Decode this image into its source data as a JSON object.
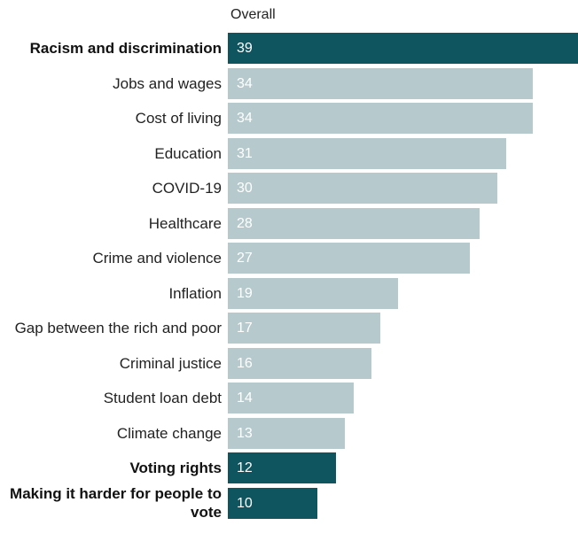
{
  "chart_data": {
    "type": "bar",
    "orientation": "horizontal",
    "column_header": "Overall",
    "categories": [
      "Racism and discrimination",
      "Jobs and wages",
      "Cost of living",
      "Education",
      "COVID-19",
      "Healthcare",
      "Crime and violence",
      "Inflation",
      "Gap between the rich and poor",
      "Criminal justice",
      "Student loan debt",
      "Climate change",
      "Voting rights",
      "Making it harder for people to vote"
    ],
    "values": [
      39,
      34,
      34,
      31,
      30,
      28,
      27,
      19,
      17,
      16,
      14,
      13,
      12,
      10
    ],
    "highlighted": [
      true,
      false,
      false,
      false,
      false,
      false,
      false,
      false,
      false,
      false,
      false,
      false,
      true,
      true
    ],
    "xlim": [
      0,
      39
    ],
    "grid": false,
    "legend": "none"
  },
  "colors": {
    "highlight": "#0f5560",
    "base": "#b6c9cc",
    "highlight_text": "#ffffff",
    "base_text": "#ffffff"
  }
}
